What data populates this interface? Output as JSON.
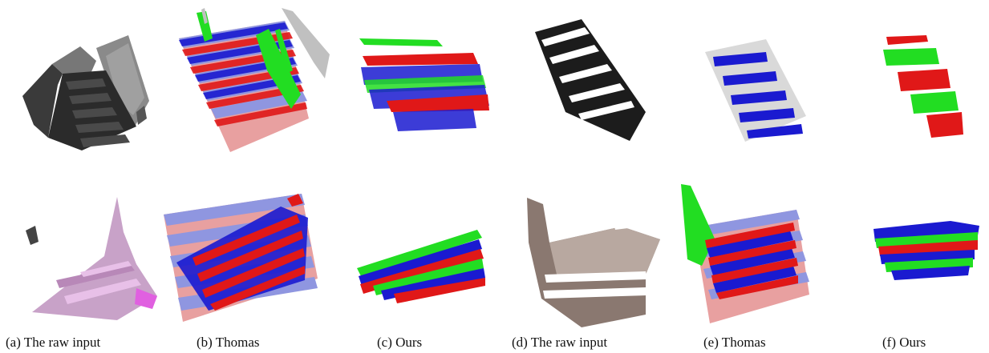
{
  "captions": [
    {
      "id": "a",
      "text": "(a) The raw input"
    },
    {
      "id": "b",
      "text": "(b) Thomas"
    },
    {
      "id": "c",
      "text": "(c) Ours"
    },
    {
      "id": "d",
      "text": "(d) The raw input"
    },
    {
      "id": "e",
      "text": "(e) Thomas"
    },
    {
      "id": "f",
      "text": "(f) Ours"
    }
  ],
  "colors": {
    "red": "#e01818",
    "green": "#22dd22",
    "blue": "#1a1ad0",
    "stair_pink": "#e8a0a0",
    "stair_blue": "#8f96e0",
    "gray_dots": "#b0b0b0"
  }
}
